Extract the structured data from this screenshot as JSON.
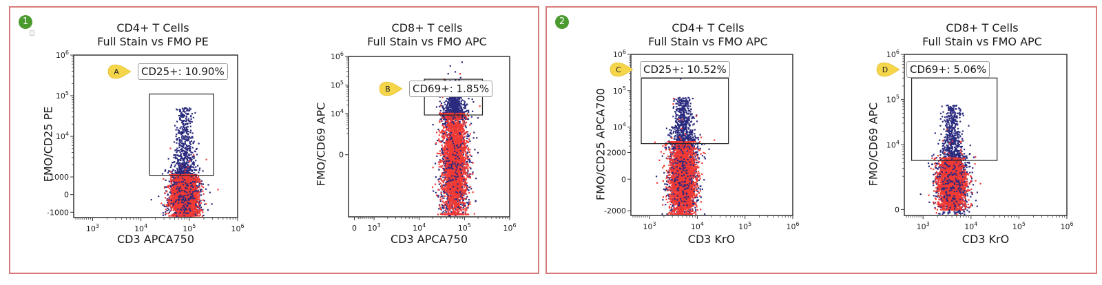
{
  "panels": [
    {
      "badge": "1"
    },
    {
      "badge": "2"
    }
  ],
  "colors": {
    "panel_border": "#d97b7b",
    "badge_green": "#4a9a2e",
    "tag_yellow": "#f5d54a",
    "full_stain_dots": "#2a2a7e",
    "fmo_dots": "#f03a35"
  },
  "chart_data": [
    {
      "type": "scatter",
      "panel": 1,
      "title": [
        "CD4+ T Cells",
        "Full Stain vs FMO PE"
      ],
      "xlabel": "CD3 APCA750",
      "ylabel": "FMO/CD25 PE",
      "x_scale": "biexponential",
      "y_scale": "biexponential",
      "x_ticks": [
        "10^3",
        "10^4",
        "10^5",
        "10^6"
      ],
      "x_tick_values": [
        1000,
        10000,
        100000,
        1000000
      ],
      "y_ticks": [
        "-1000",
        "0",
        "1000",
        "10^4",
        "10^5",
        "10^6"
      ],
      "y_tick_values": [
        -1000,
        0,
        1000,
        10000,
        100000,
        1000000
      ],
      "xlim": [
        100,
        1000000
      ],
      "ylim": [
        -1300,
        1000000
      ],
      "gate": {
        "tag": "A",
        "label": "CD25+: 10.90%",
        "x": [
          15000,
          320000
        ],
        "y": [
          1100,
          110000
        ]
      },
      "series": [
        {
          "name": "Full Stain",
          "color": "#2a2a7e",
          "center_x": 80000,
          "y_range": [
            -1000,
            50000
          ]
        },
        {
          "name": "FMO",
          "color": "#f03a35",
          "center_x": 80000,
          "y_range": [
            -1200,
            1000
          ]
        }
      ]
    },
    {
      "type": "scatter",
      "panel": 1,
      "title": [
        "CD8+ T cells",
        "Full Stain vs FMO APC"
      ],
      "xlabel": "CD3 APCA750",
      "ylabel": "FMO/CD69 APC",
      "x_scale": "biexponential",
      "y_scale": "biexponential",
      "x_ticks": [
        "0",
        "10^3",
        "10^4",
        "10^5",
        "10^6"
      ],
      "x_tick_values": [
        0,
        1000,
        10000,
        100000,
        1000000
      ],
      "y_ticks": [
        "0",
        "10^4",
        "10^5",
        "10^6"
      ],
      "y_tick_values": [
        0,
        10000,
        100000,
        1000000
      ],
      "xlim": [
        -300,
        1000000
      ],
      "ylim": [
        -5000,
        1000000
      ],
      "gate": {
        "tag": "B",
        "label": "CD69+: 1.85%",
        "x": [
          13000,
          250000
        ],
        "y": [
          9000,
          160000
        ]
      },
      "series": [
        {
          "name": "Full Stain",
          "color": "#2a2a7e",
          "center_x": 60000,
          "y_range": [
            -4500,
            60000
          ]
        },
        {
          "name": "FMO",
          "color": "#f03a35",
          "center_x": 60000,
          "y_range": [
            -4800,
            9000
          ]
        }
      ]
    },
    {
      "type": "scatter",
      "panel": 2,
      "title": [
        "CD4+ T Cells",
        "Full Stain vs FMO APC"
      ],
      "xlabel": "CD3 KrO",
      "ylabel": "FMO/CD25 APCA700",
      "x_scale": "biexponential",
      "y_scale": "biexponential",
      "x_ticks": [
        "10^3",
        "10^4",
        "10^5",
        "10^6"
      ],
      "x_tick_values": [
        1000,
        10000,
        100000,
        1000000
      ],
      "y_ticks": [
        "-2000",
        "0",
        "2000",
        "10^4",
        "10^5",
        "10^6"
      ],
      "y_tick_values": [
        -2000,
        0,
        2000,
        10000,
        100000,
        1000000
      ],
      "xlim": [
        100,
        1000000
      ],
      "ylim": [
        -2300,
        1000000
      ],
      "gate": {
        "tag": "C",
        "label": "CD25+: 10.52%",
        "x": [
          600,
          45000
        ],
        "y": [
          3500,
          220000
        ]
      },
      "series": [
        {
          "name": "Full Stain",
          "color": "#2a2a7e",
          "center_x": 5000,
          "y_range": [
            -2000,
            65000
          ]
        },
        {
          "name": "FMO",
          "color": "#f03a35",
          "center_x": 5000,
          "y_range": [
            -2200,
            3500
          ]
        }
      ]
    },
    {
      "type": "scatter",
      "panel": 2,
      "title": [
        "CD8+ T Cells",
        "Full Stain vs FMO APC"
      ],
      "xlabel": "CD3 KrO",
      "ylabel": "FMO/CD69 APC",
      "x_scale": "biexponential",
      "y_scale": "biexponential",
      "x_ticks": [
        "10^3",
        "10^4",
        "10^5",
        "10^6"
      ],
      "x_tick_values": [
        1000,
        10000,
        100000,
        1000000
      ],
      "y_ticks": [
        "0",
        "10^4",
        "10^5",
        "10^6"
      ],
      "y_tick_values": [
        0,
        10000,
        100000,
        1000000
      ],
      "xlim": [
        100,
        1000000
      ],
      "ylim": [
        -300,
        1000000
      ],
      "gate": {
        "tag": "D",
        "label": "CD69+: 5.06%",
        "x": [
          450,
          35000
        ],
        "y": [
          4500,
          300000
        ]
      },
      "series": [
        {
          "name": "Full Stain",
          "color": "#2a2a7e",
          "center_x": 4000,
          "y_range": [
            0,
            75000
          ]
        },
        {
          "name": "FMO",
          "color": "#f03a35",
          "center_x": 4000,
          "y_range": [
            0,
            4500
          ]
        }
      ]
    }
  ]
}
